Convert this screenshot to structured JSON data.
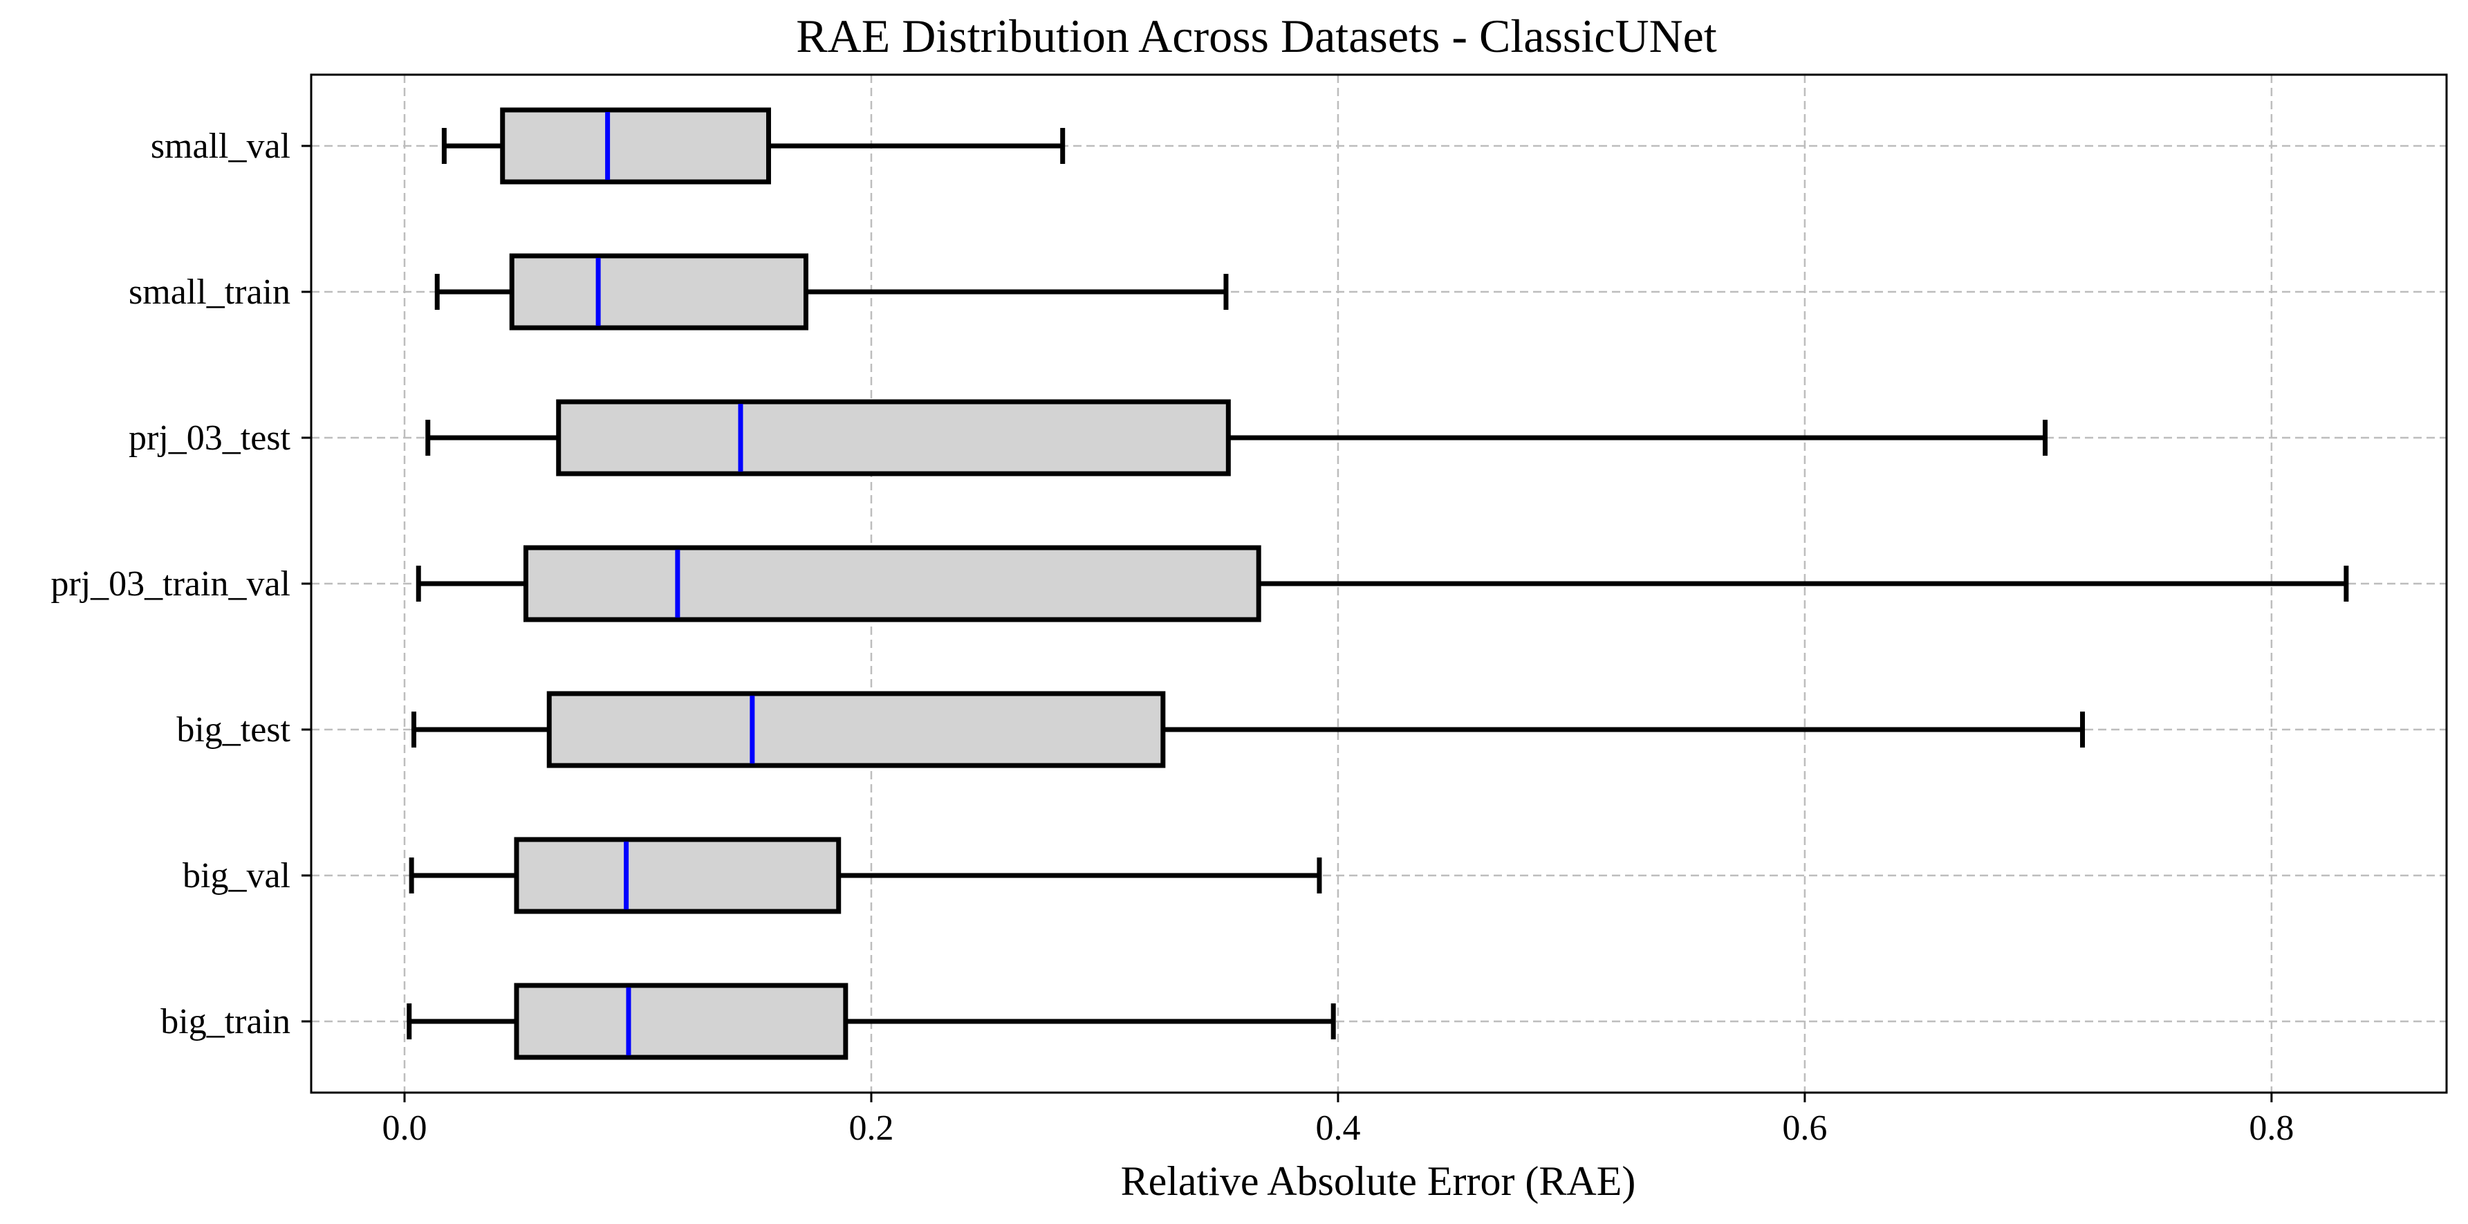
{
  "chart_data": {
    "type": "boxplot",
    "orientation": "horizontal",
    "title": "RAE Distribution Across Datasets - ClassicUNet",
    "xlabel": "Relative Absolute Error (RAE)",
    "ylabel": "",
    "xlim": [
      -0.04,
      0.875
    ],
    "xticks": [
      0.0,
      0.2,
      0.4,
      0.6,
      0.8
    ],
    "xtick_labels": [
      "0.0",
      "0.2",
      "0.4",
      "0.6",
      "0.8"
    ],
    "grid": true,
    "categories": [
      "small_val",
      "small_train",
      "prj_03_test",
      "prj_03_train_val",
      "big_test",
      "big_val",
      "big_train"
    ],
    "boxes": [
      {
        "label": "small_val",
        "whisker_low": 0.017,
        "q1": 0.042,
        "median": 0.087,
        "q3": 0.156,
        "whisker_high": 0.282
      },
      {
        "label": "small_train",
        "whisker_low": 0.014,
        "q1": 0.046,
        "median": 0.083,
        "q3": 0.172,
        "whisker_high": 0.352
      },
      {
        "label": "prj_03_test",
        "whisker_low": 0.01,
        "q1": 0.066,
        "median": 0.144,
        "q3": 0.353,
        "whisker_high": 0.703
      },
      {
        "label": "prj_03_train_val",
        "whisker_low": 0.006,
        "q1": 0.052,
        "median": 0.117,
        "q3": 0.366,
        "whisker_high": 0.832
      },
      {
        "label": "big_test",
        "whisker_low": 0.004,
        "q1": 0.062,
        "median": 0.149,
        "q3": 0.325,
        "whisker_high": 0.719
      },
      {
        "label": "big_val",
        "whisker_low": 0.003,
        "q1": 0.048,
        "median": 0.095,
        "q3": 0.186,
        "whisker_high": 0.392
      },
      {
        "label": "big_train",
        "whisker_low": 0.002,
        "q1": 0.048,
        "median": 0.096,
        "q3": 0.189,
        "whisker_high": 0.398
      }
    ],
    "colors": {
      "box_fill": "#d3d3d3",
      "box_edge": "#000000",
      "median": "#0000ff",
      "grid": "#bdbdbd"
    }
  }
}
